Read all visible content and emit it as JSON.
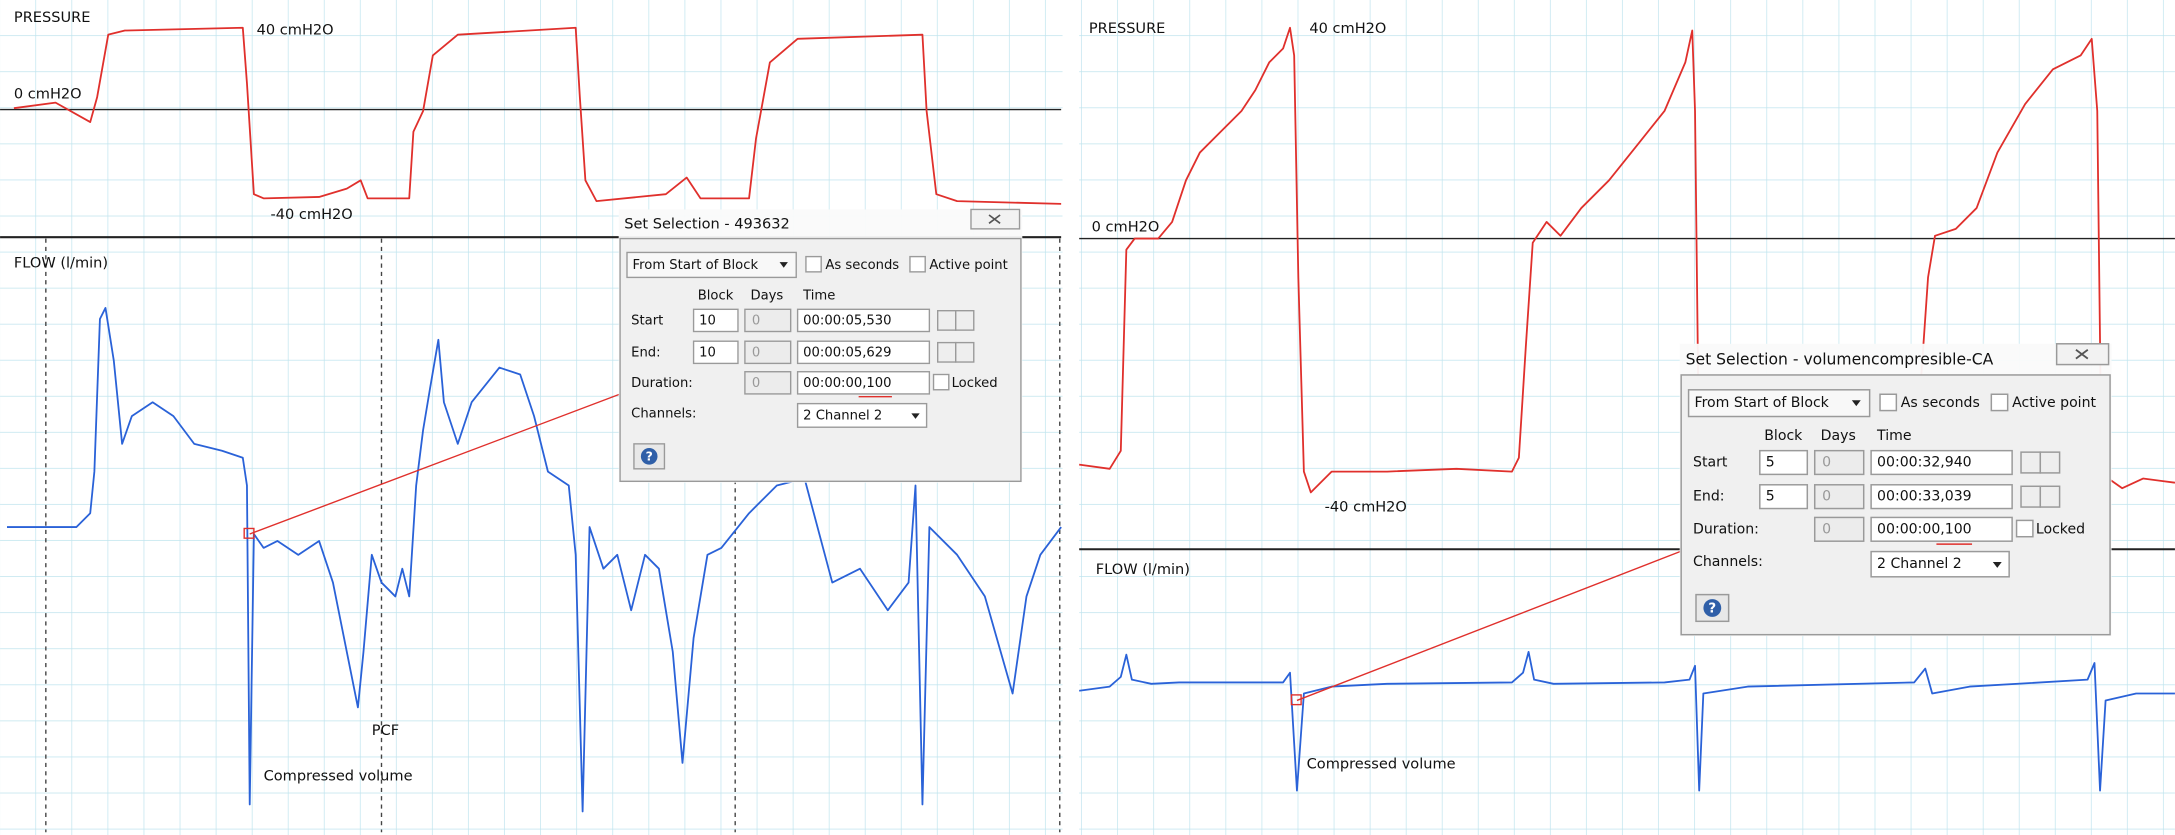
{
  "left": {
    "pressure": {
      "label": "PRESSURE",
      "high": "40 cmH2O",
      "zero": "0 cmH2O",
      "low": "-40 cmH2O"
    },
    "flow": {
      "label": "FLOW (l/min)",
      "annotations": [
        "PCF",
        "Compressed volume"
      ]
    },
    "dialog": {
      "title": "Set Selection - 493632",
      "mode": "From Start of Block",
      "options": [
        "As seconds",
        "Active point"
      ],
      "headers": [
        "Block",
        "Days",
        "Time"
      ],
      "rows": [
        {
          "label": "Start",
          "block": 10,
          "days": 0,
          "time": "00:00:05,530"
        },
        {
          "label": "End:",
          "block": 10,
          "days": 0,
          "time": "00:00:05,629"
        }
      ],
      "duration": {
        "label": "Duration:",
        "days": 0,
        "time": "00:00:00,100",
        "locked": "Locked"
      },
      "channels": {
        "label": "Channels:",
        "value": "2 Channel 2"
      },
      "help": "?"
    }
  },
  "right": {
    "pressure": {
      "label": "PRESSURE",
      "high": "40 cmH2O",
      "zero": "0 cmH2O",
      "low": "-40 cmH2O"
    },
    "flow": {
      "label": "FLOW  (l/min)",
      "annotations": [
        "Compressed volume"
      ]
    },
    "dialog": {
      "title": "Set Selection - volumencompresible-CA",
      "mode": "From Start of Block",
      "options": [
        "As seconds",
        "Active point"
      ],
      "headers": [
        "Block",
        "Days",
        "Time"
      ],
      "rows": [
        {
          "label": "Start",
          "block": 5,
          "days": 0,
          "time": "00:00:32,940"
        },
        {
          "label": "End:",
          "block": 5,
          "days": 0,
          "time": "00:00:33,039"
        }
      ],
      "duration": {
        "label": "Duration:",
        "days": 0,
        "time": "00:00:00,100",
        "locked": "Locked"
      },
      "channels": {
        "label": "Channels:",
        "value": "2 Channel 2"
      },
      "help": "?"
    }
  }
}
